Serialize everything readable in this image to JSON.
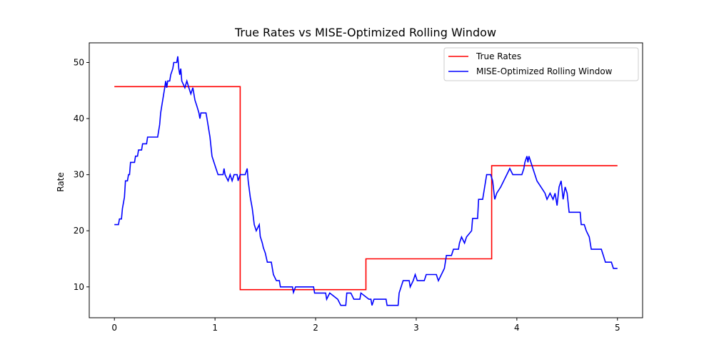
{
  "chart_data": {
    "type": "line",
    "title": "True Rates vs MISE-Optimized Rolling Window",
    "xlabel": "",
    "ylabel": "Rate",
    "xlim": [
      -0.25,
      5.25
    ],
    "ylim": [
      4.5,
      53.5
    ],
    "xticks": [
      0,
      1,
      2,
      3,
      4,
      5
    ],
    "yticks": [
      10,
      20,
      30,
      40,
      50
    ],
    "grid": false,
    "legend_position": "top-right",
    "series": [
      {
        "name": "True Rates",
        "color": "#ff0000",
        "step": true,
        "points": [
          [
            0,
            45.7
          ],
          [
            1.25,
            45.7
          ],
          [
            1.25,
            9.5
          ],
          [
            2.5,
            9.5
          ],
          [
            2.5,
            15.0
          ],
          [
            3.75,
            15.0
          ],
          [
            3.75,
            31.6
          ],
          [
            5.0,
            31.6
          ]
        ]
      },
      {
        "name": "MISE-Optimized Rolling Window",
        "color": "#0000ff",
        "step": false,
        "points": [
          [
            0.0,
            21.1
          ],
          [
            0.04,
            21.1
          ],
          [
            0.05,
            22.1
          ],
          [
            0.07,
            22.1
          ],
          [
            0.08,
            24.0
          ],
          [
            0.1,
            26.0
          ],
          [
            0.11,
            28.9
          ],
          [
            0.13,
            28.9
          ],
          [
            0.14,
            30.0
          ],
          [
            0.15,
            30.0
          ],
          [
            0.16,
            32.2
          ],
          [
            0.2,
            32.2
          ],
          [
            0.21,
            33.3
          ],
          [
            0.23,
            33.3
          ],
          [
            0.24,
            34.4
          ],
          [
            0.27,
            34.4
          ],
          [
            0.28,
            35.5
          ],
          [
            0.32,
            35.5
          ],
          [
            0.33,
            36.7
          ],
          [
            0.43,
            36.7
          ],
          [
            0.44,
            37.8
          ],
          [
            0.45,
            38.9
          ],
          [
            0.46,
            41.0
          ],
          [
            0.47,
            42.2
          ],
          [
            0.48,
            43.3
          ],
          [
            0.49,
            44.4
          ],
          [
            0.5,
            45.5
          ],
          [
            0.51,
            46.7
          ],
          [
            0.52,
            45.5
          ],
          [
            0.53,
            46.7
          ],
          [
            0.55,
            46.7
          ],
          [
            0.56,
            47.8
          ],
          [
            0.58,
            48.9
          ],
          [
            0.59,
            50.0
          ],
          [
            0.62,
            50.0
          ],
          [
            0.63,
            51.1
          ],
          [
            0.64,
            48.9
          ],
          [
            0.65,
            47.8
          ],
          [
            0.66,
            48.9
          ],
          [
            0.67,
            46.7
          ],
          [
            0.7,
            45.5
          ],
          [
            0.72,
            46.7
          ],
          [
            0.74,
            45.5
          ],
          [
            0.76,
            44.4
          ],
          [
            0.78,
            45.5
          ],
          [
            0.8,
            43.3
          ],
          [
            0.82,
            42.2
          ],
          [
            0.84,
            41.0
          ],
          [
            0.85,
            40.0
          ],
          [
            0.86,
            41.0
          ],
          [
            0.91,
            41.0
          ],
          [
            0.92,
            40.0
          ],
          [
            0.93,
            38.9
          ],
          [
            0.95,
            36.7
          ],
          [
            0.97,
            33.3
          ],
          [
            0.99,
            32.2
          ],
          [
            1.01,
            31.1
          ],
          [
            1.03,
            30.0
          ],
          [
            1.08,
            30.0
          ],
          [
            1.09,
            31.1
          ],
          [
            1.1,
            30.0
          ],
          [
            1.13,
            28.9
          ],
          [
            1.15,
            30.0
          ],
          [
            1.17,
            28.9
          ],
          [
            1.19,
            30.0
          ],
          [
            1.22,
            30.0
          ],
          [
            1.23,
            28.9
          ],
          [
            1.25,
            30.0
          ],
          [
            1.3,
            30.0
          ],
          [
            1.32,
            31.1
          ],
          [
            1.33,
            28.9
          ],
          [
            1.35,
            26.0
          ],
          [
            1.37,
            24.0
          ],
          [
            1.39,
            21.1
          ],
          [
            1.41,
            20.0
          ],
          [
            1.44,
            21.1
          ],
          [
            1.45,
            19.0
          ],
          [
            1.47,
            17.8
          ],
          [
            1.48,
            17.0
          ],
          [
            1.5,
            16.0
          ],
          [
            1.52,
            14.4
          ],
          [
            1.56,
            14.4
          ],
          [
            1.58,
            12.2
          ],
          [
            1.61,
            11.1
          ],
          [
            1.64,
            11.1
          ],
          [
            1.65,
            10.0
          ],
          [
            1.77,
            10.0
          ],
          [
            1.78,
            9.0
          ],
          [
            1.8,
            10.0
          ],
          [
            1.98,
            10.0
          ],
          [
            1.99,
            8.9
          ],
          [
            2.1,
            8.9
          ],
          [
            2.11,
            7.8
          ],
          [
            2.14,
            8.9
          ],
          [
            2.22,
            7.8
          ],
          [
            2.25,
            6.7
          ],
          [
            2.3,
            6.7
          ],
          [
            2.31,
            8.9
          ],
          [
            2.35,
            8.9
          ],
          [
            2.38,
            7.8
          ],
          [
            2.44,
            7.8
          ],
          [
            2.45,
            8.9
          ],
          [
            2.53,
            7.8
          ],
          [
            2.55,
            7.8
          ],
          [
            2.56,
            6.7
          ],
          [
            2.58,
            7.8
          ],
          [
            2.7,
            7.8
          ],
          [
            2.71,
            6.7
          ],
          [
            2.82,
            6.7
          ],
          [
            2.83,
            8.9
          ],
          [
            2.85,
            10.0
          ],
          [
            2.87,
            11.1
          ],
          [
            2.93,
            11.1
          ],
          [
            2.94,
            10.0
          ],
          [
            2.97,
            11.1
          ],
          [
            2.99,
            12.2
          ],
          [
            3.01,
            11.1
          ],
          [
            3.08,
            11.1
          ],
          [
            3.1,
            12.2
          ],
          [
            3.2,
            12.2
          ],
          [
            3.22,
            11.1
          ],
          [
            3.25,
            12.2
          ],
          [
            3.28,
            13.3
          ],
          [
            3.3,
            15.6
          ],
          [
            3.35,
            15.6
          ],
          [
            3.37,
            16.7
          ],
          [
            3.42,
            16.7
          ],
          [
            3.43,
            17.8
          ],
          [
            3.45,
            18.9
          ],
          [
            3.48,
            17.8
          ],
          [
            3.5,
            18.9
          ],
          [
            3.55,
            20.0
          ],
          [
            3.56,
            22.2
          ],
          [
            3.61,
            22.2
          ],
          [
            3.62,
            25.6
          ],
          [
            3.66,
            25.6
          ],
          [
            3.68,
            27.8
          ],
          [
            3.7,
            30.0
          ],
          [
            3.74,
            30.0
          ],
          [
            3.76,
            28.9
          ],
          [
            3.78,
            25.6
          ],
          [
            3.8,
            26.7
          ],
          [
            3.84,
            27.8
          ],
          [
            3.87,
            28.9
          ],
          [
            3.9,
            30.0
          ],
          [
            3.93,
            31.1
          ],
          [
            3.96,
            30.0
          ],
          [
            4.05,
            30.0
          ],
          [
            4.07,
            31.1
          ],
          [
            4.08,
            32.2
          ],
          [
            4.1,
            33.3
          ],
          [
            4.11,
            32.2
          ],
          [
            4.12,
            33.3
          ],
          [
            4.14,
            32.2
          ],
          [
            4.16,
            31.1
          ],
          [
            4.18,
            30.0
          ],
          [
            4.2,
            28.9
          ],
          [
            4.24,
            27.8
          ],
          [
            4.28,
            26.7
          ],
          [
            4.3,
            25.6
          ],
          [
            4.33,
            26.7
          ],
          [
            4.36,
            25.6
          ],
          [
            4.38,
            26.7
          ],
          [
            4.4,
            24.5
          ],
          [
            4.42,
            27.8
          ],
          [
            4.44,
            28.9
          ],
          [
            4.46,
            25.6
          ],
          [
            4.48,
            27.8
          ],
          [
            4.5,
            26.7
          ],
          [
            4.52,
            23.3
          ],
          [
            4.63,
            23.3
          ],
          [
            4.64,
            21.1
          ],
          [
            4.67,
            21.1
          ],
          [
            4.69,
            20.0
          ],
          [
            4.72,
            18.9
          ],
          [
            4.74,
            16.7
          ],
          [
            4.84,
            16.7
          ],
          [
            4.86,
            15.6
          ],
          [
            4.88,
            14.4
          ],
          [
            4.94,
            14.4
          ],
          [
            4.96,
            13.3
          ],
          [
            5.0,
            13.3
          ]
        ]
      }
    ]
  }
}
